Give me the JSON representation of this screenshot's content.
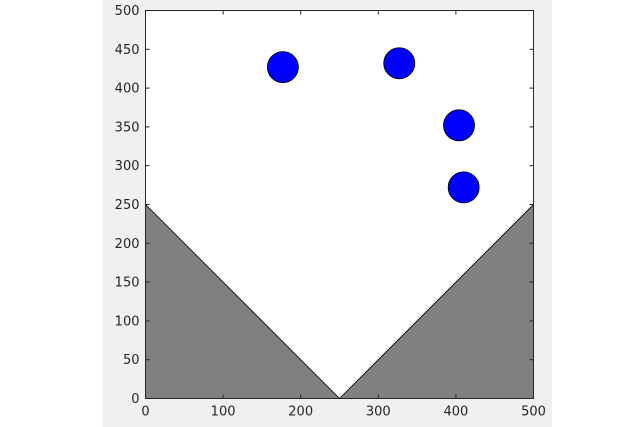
{
  "chart_data": {
    "type": "scatter",
    "xlim": [
      0,
      500
    ],
    "ylim": [
      0,
      500
    ],
    "xticks": [
      0,
      100,
      200,
      300,
      400,
      500
    ],
    "yticks": [
      0,
      50,
      100,
      150,
      200,
      250,
      300,
      350,
      400,
      450,
      500
    ],
    "xtick_labels": [
      "0",
      "100",
      "200",
      "300",
      "400",
      "500"
    ],
    "ytick_labels": [
      "0",
      "50",
      "100",
      "150",
      "200",
      "250",
      "300",
      "350",
      "400",
      "450",
      "500"
    ],
    "grid": false,
    "points": [
      {
        "x": 177,
        "y": 427
      },
      {
        "x": 327,
        "y": 432
      },
      {
        "x": 404,
        "y": 352
      },
      {
        "x": 410,
        "y": 272
      }
    ],
    "point_radius": 20,
    "regions": [
      {
        "vertices": [
          [
            0,
            0
          ],
          [
            0,
            250
          ],
          [
            250,
            0
          ]
        ]
      },
      {
        "vertices": [
          [
            250,
            0
          ],
          [
            500,
            250
          ],
          [
            500,
            0
          ]
        ]
      }
    ],
    "colors": {
      "point_fill": "#0000ff",
      "point_edge": "#000000",
      "region_fill": "#808080",
      "region_edge": "#000000",
      "axes_bg": "#ffffff",
      "figure_bg": "#f0f0f0"
    }
  }
}
